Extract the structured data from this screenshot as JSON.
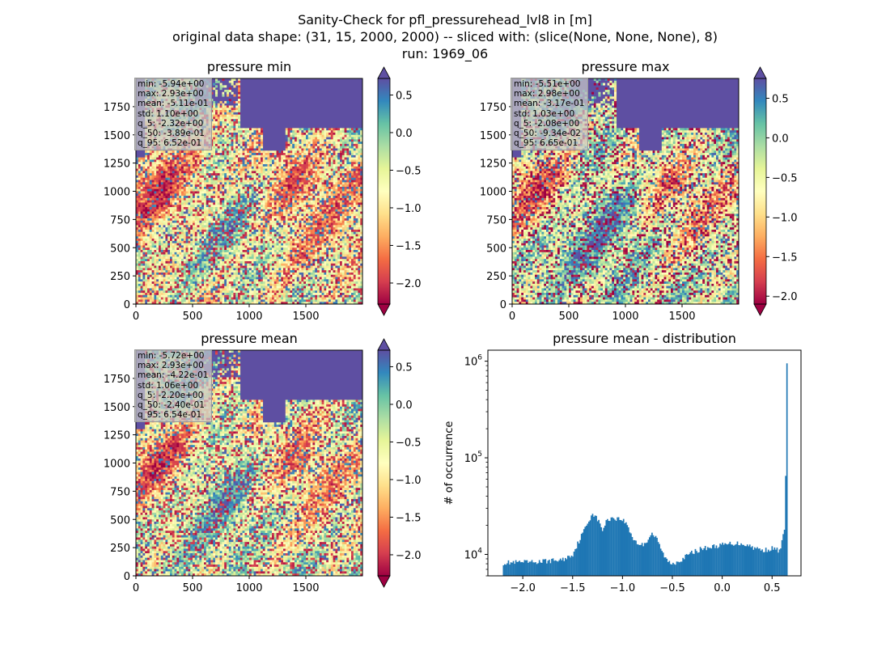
{
  "suptitle": {
    "line1": "Sanity-Check for pfl_pressurehead_lvl8 in [m]",
    "line2": "original data shape: (31, 15, 2000, 2000) -- sliced with: (slice(None, None, None), 8)",
    "line3": "run: 1969_06"
  },
  "colors": {
    "histogram": "#1f77b4",
    "colormap": "Spectral",
    "colormap_stops": [
      "#9e0142",
      "#d53e4f",
      "#f46d43",
      "#fdae61",
      "#fee08b",
      "#ffffbf",
      "#e6f598",
      "#abdda4",
      "#66c2a5",
      "#3288bd",
      "#5e4fa2"
    ],
    "extend_low": "#9e0142",
    "extend_high": "#5e4fa2"
  },
  "chart_data": [
    {
      "type": "heatmap",
      "title": "pressure min",
      "xlabel": "",
      "ylabel": "",
      "xlim": [
        0,
        2000
      ],
      "ylim": [
        0,
        2000
      ],
      "xticks": [
        "0",
        "500",
        "1000",
        "1500"
      ],
      "yticks": [
        "0",
        "250",
        "500",
        "750",
        "1000",
        "1250",
        "1500",
        "1750"
      ],
      "colorbar": {
        "vmin": -2.28,
        "vmax": 0.72,
        "ticks": [
          "0.5",
          "0.0",
          "−0.5",
          "−1.0",
          "−1.5",
          "−2.0"
        ],
        "extend": "both"
      },
      "stats": [
        "min: -5.94e+00",
        "max: 2.93e+00",
        "mean: -5.11e-01",
        "std: 1.10e+00",
        "q_5: -2.32e+00",
        "q_50: -3.89e-01",
        "q_95: 6.52e-01"
      ]
    },
    {
      "type": "heatmap",
      "title": "pressure max",
      "xlabel": "",
      "ylabel": "",
      "xlim": [
        0,
        2000
      ],
      "ylim": [
        0,
        2000
      ],
      "xticks": [
        "0",
        "500",
        "1000",
        "1500"
      ],
      "yticks": [
        "0",
        "250",
        "500",
        "750",
        "1000",
        "1250",
        "1500",
        "1750"
      ],
      "colorbar": {
        "vmin": -2.1,
        "vmax": 0.75,
        "ticks": [
          "0.5",
          "0.0",
          "−0.5",
          "−1.0",
          "−1.5",
          "−2.0"
        ],
        "extend": "both"
      },
      "stats": [
        "min: -5.51e+00",
        "max: 2.98e+00",
        "mean: -3.17e-01",
        "std: 1.03e+00",
        "q_5: -2.08e+00",
        "q_50: -9.34e-02",
        "q_95: 6.65e-01"
      ]
    },
    {
      "type": "heatmap",
      "title": "pressure mean",
      "xlabel": "",
      "ylabel": "",
      "xlim": [
        0,
        2000
      ],
      "ylim": [
        0,
        2000
      ],
      "xticks": [
        "0",
        "500",
        "1000",
        "1500"
      ],
      "yticks": [
        "0",
        "250",
        "500",
        "750",
        "1000",
        "1250",
        "1500",
        "1750"
      ],
      "colorbar": {
        "vmin": -2.28,
        "vmax": 0.72,
        "ticks": [
          "0.5",
          "0.0",
          "−0.5",
          "−1.0",
          "−1.5",
          "−2.0"
        ],
        "extend": "both"
      },
      "stats": [
        "min: -5.72e+00",
        "max: 2.93e+00",
        "mean: -4.22e-01",
        "std: 1.06e+00",
        "q_5: -2.20e+00",
        "q_50: -2.40e-01",
        "q_95: 6.54e-01"
      ]
    },
    {
      "type": "bar",
      "title": "pressure mean - distribution",
      "xlabel": "",
      "ylabel": "# of occurrence",
      "yscale": "log",
      "xlim": [
        -2.35,
        0.79
      ],
      "ylim": [
        6000,
        1300000
      ],
      "xticks": [
        -2.0,
        -1.5,
        -1.0,
        -0.5,
        0.0,
        0.5
      ],
      "xticklabels": [
        "−2.0",
        "−1.5",
        "−1.0",
        "−0.5",
        "0.0",
        "0.5"
      ],
      "yticks": [
        10000,
        100000,
        1000000
      ],
      "yticklabels": [
        {
          "base": "10",
          "exp": "4"
        },
        {
          "base": "10",
          "exp": "5"
        },
        {
          "base": "10",
          "exp": "6"
        }
      ],
      "bins": [
        -2.2,
        0.655
      ],
      "profile": [
        [
          -2.2,
          8200
        ],
        [
          -1.9,
          8300
        ],
        [
          -1.6,
          8800
        ],
        [
          -1.5,
          10000
        ],
        [
          -1.42,
          15000
        ],
        [
          -1.35,
          21000
        ],
        [
          -1.3,
          27000
        ],
        [
          -1.25,
          23000
        ],
        [
          -1.2,
          18000
        ],
        [
          -1.15,
          23000
        ],
        [
          -1.1,
          24000
        ],
        [
          -1.05,
          23500
        ],
        [
          -1.0,
          23000
        ],
        [
          -0.95,
          20000
        ],
        [
          -0.9,
          15000
        ],
        [
          -0.85,
          13000
        ],
        [
          -0.8,
          12500
        ],
        [
          -0.75,
          14000
        ],
        [
          -0.72,
          16000
        ],
        [
          -0.7,
          16500
        ],
        [
          -0.65,
          14000
        ],
        [
          -0.6,
          10500
        ],
        [
          -0.55,
          8500
        ],
        [
          -0.5,
          8000
        ],
        [
          -0.4,
          9000
        ],
        [
          -0.3,
          10500
        ],
        [
          -0.2,
          11500
        ],
        [
          -0.1,
          12000
        ],
        [
          0.0,
          12500
        ],
        [
          0.1,
          13000
        ],
        [
          0.2,
          13000
        ],
        [
          0.3,
          12000
        ],
        [
          0.4,
          11000
        ],
        [
          0.5,
          11500
        ],
        [
          0.58,
          11000
        ],
        [
          0.6,
          13500
        ],
        [
          0.62,
          17500
        ],
        [
          0.635,
          35000
        ],
        [
          0.645,
          65000
        ],
        [
          0.652,
          950000
        ],
        [
          0.655,
          700000
        ]
      ]
    }
  ]
}
